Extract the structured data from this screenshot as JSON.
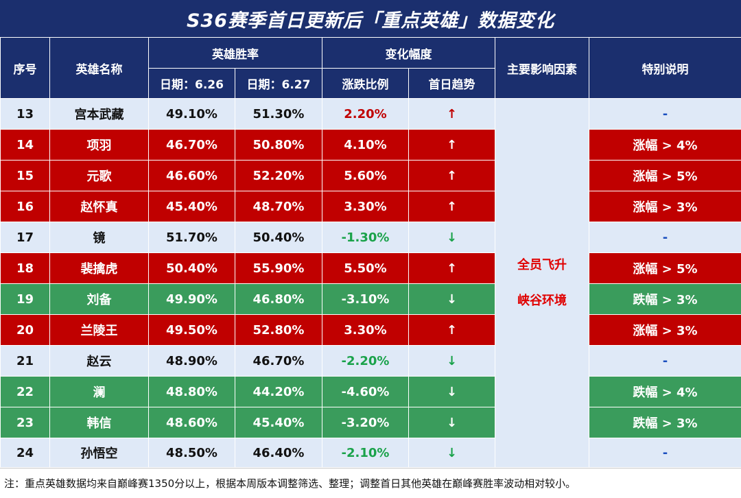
{
  "title": "S36赛季首日更新后「重点英雄」数据变化",
  "headers": {
    "index": "序号",
    "name": "英雄名称",
    "win_rate": "英雄胜率",
    "change": "变化幅度",
    "factor": "主要影响因素",
    "note": "特别说明",
    "date1": "日期：6.26",
    "date2": "日期：6.27",
    "ratio": "涨跌比例",
    "trend": "首日趋势"
  },
  "rows": [
    {
      "idx": "13",
      "name": "宫本武藏",
      "d1": "49.10%",
      "d2": "51.30%",
      "chg": "2.20%",
      "trend": "↑",
      "note": "-",
      "style": "neutral",
      "dir": "up"
    },
    {
      "idx": "14",
      "name": "项羽",
      "d1": "46.70%",
      "d2": "50.80%",
      "chg": "4.10%",
      "trend": "↑",
      "note": "涨幅 > 4%",
      "style": "up",
      "dir": "up"
    },
    {
      "idx": "15",
      "name": "元歌",
      "d1": "46.60%",
      "d2": "52.20%",
      "chg": "5.60%",
      "trend": "↑",
      "note": "涨幅 > 5%",
      "style": "up",
      "dir": "up"
    },
    {
      "idx": "16",
      "name": "赵怀真",
      "d1": "45.40%",
      "d2": "48.70%",
      "chg": "3.30%",
      "trend": "↑",
      "note": "涨幅 > 3%",
      "style": "up",
      "dir": "up"
    },
    {
      "idx": "17",
      "name": "镜",
      "d1": "51.70%",
      "d2": "50.40%",
      "chg": "-1.30%",
      "trend": "↓",
      "note": "-",
      "style": "neutral",
      "dir": "down"
    },
    {
      "idx": "18",
      "name": "裴擒虎",
      "d1": "50.40%",
      "d2": "55.90%",
      "chg": "5.50%",
      "trend": "↑",
      "note": "涨幅 > 5%",
      "style": "up",
      "dir": "up"
    },
    {
      "idx": "19",
      "name": "刘备",
      "d1": "49.90%",
      "d2": "46.80%",
      "chg": "-3.10%",
      "trend": "↓",
      "note": "跌幅 > 3%",
      "style": "down",
      "dir": "down"
    },
    {
      "idx": "20",
      "name": "兰陵王",
      "d1": "49.50%",
      "d2": "52.80%",
      "chg": "3.30%",
      "trend": "↑",
      "note": "涨幅 > 3%",
      "style": "up",
      "dir": "up"
    },
    {
      "idx": "21",
      "name": "赵云",
      "d1": "48.90%",
      "d2": "46.70%",
      "chg": "-2.20%",
      "trend": "↓",
      "note": "-",
      "style": "neutral",
      "dir": "down"
    },
    {
      "idx": "22",
      "name": "澜",
      "d1": "48.80%",
      "d2": "44.20%",
      "chg": "-4.60%",
      "trend": "↓",
      "note": "跌幅 > 4%",
      "style": "down",
      "dir": "down"
    },
    {
      "idx": "23",
      "name": "韩信",
      "d1": "48.60%",
      "d2": "45.40%",
      "chg": "-3.20%",
      "trend": "↓",
      "note": "跌幅 > 3%",
      "style": "down",
      "dir": "down"
    },
    {
      "idx": "24",
      "name": "孙悟空",
      "d1": "48.50%",
      "d2": "46.40%",
      "chg": "-2.10%",
      "trend": "↓",
      "note": "-",
      "style": "neutral",
      "dir": "down"
    }
  ],
  "factor": {
    "line1": "全员飞升",
    "line2": "峡谷环境"
  },
  "footnote": "注：重点英雄数据均来自巅峰赛1350分以上，根据本周版本调整筛选、整理；调整首日其他英雄在巅峰赛胜率波动相对较小。",
  "colors": {
    "header_bg": "#1b2f6e",
    "row_up": "#c00000",
    "row_down": "#3a9c5c",
    "row_neutral": "#dfe9f7",
    "factor_text": "#e00000"
  }
}
